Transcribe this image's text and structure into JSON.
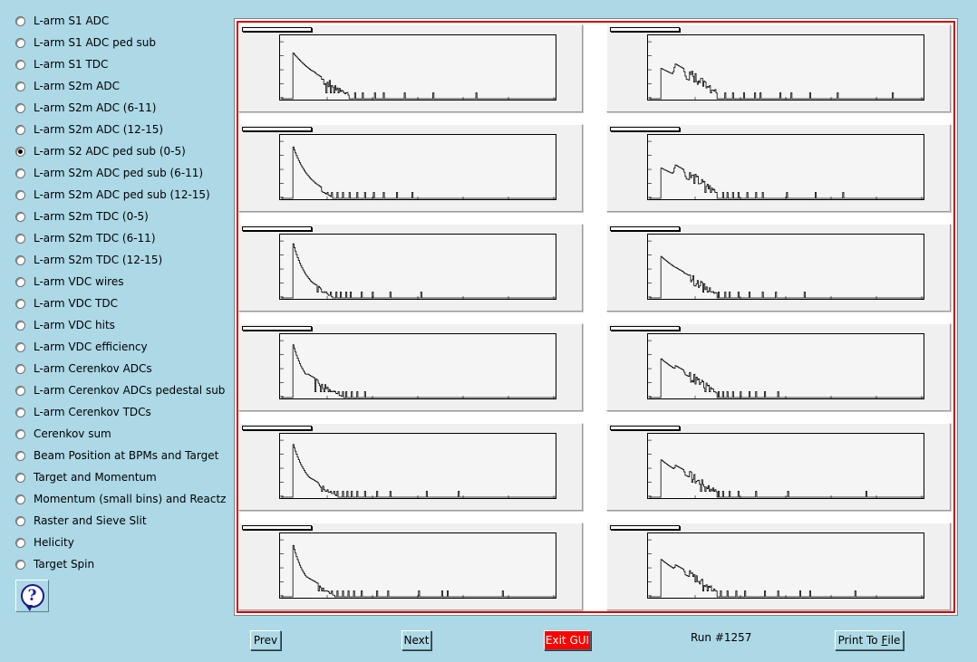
{
  "sidebar": {
    "items": [
      {
        "label": "L-arm S1 ADC",
        "checked": false
      },
      {
        "label": "L-arm S1 ADC ped sub",
        "checked": false
      },
      {
        "label": "L-arm S1 TDC",
        "checked": false
      },
      {
        "label": "L-arm S2m ADC",
        "checked": false
      },
      {
        "label": "L-arm S2m ADC (6-11)",
        "checked": false
      },
      {
        "label": "L-arm S2m ADC (12-15)",
        "checked": false
      },
      {
        "label": "L-arm S2 ADC ped sub (0-5)",
        "checked": true
      },
      {
        "label": "L-arm S2m ADC ped sub (6-11)",
        "checked": false
      },
      {
        "label": "L-arm S2m ADC ped sub (12-15)",
        "checked": false
      },
      {
        "label": "L-arm S2m TDC (0-5)",
        "checked": false
      },
      {
        "label": "L-arm S2m TDC (6-11)",
        "checked": false
      },
      {
        "label": "L-arm S2m TDC (12-15)",
        "checked": false
      },
      {
        "label": "L-arm VDC wires",
        "checked": false
      },
      {
        "label": "L-arm VDC TDC",
        "checked": false
      },
      {
        "label": "L-arm VDC hits",
        "checked": false
      },
      {
        "label": "L-arm VDC efficiency",
        "checked": false
      },
      {
        "label": "L-arm Cerenkov ADCs",
        "checked": false
      },
      {
        "label": "L-arm Cerenkov ADCs pedestal sub",
        "checked": false
      },
      {
        "label": "L-arm Cerenkov TDCs",
        "checked": false
      },
      {
        "label": "Cerenkov sum",
        "checked": false
      },
      {
        "label": "Beam Position at BPMs and Target",
        "checked": false
      },
      {
        "label": "Target and Momentum",
        "checked": false
      },
      {
        "label": "Momentum (small bins) and Reactz",
        "checked": false
      },
      {
        "label": "Raster and Sieve Slit",
        "checked": false
      },
      {
        "label": "Helicity",
        "checked": false
      },
      {
        "label": "Target Spin",
        "checked": false
      }
    ],
    "help_icon": "question-mark-icon",
    "help_symbol": "?"
  },
  "buttons": {
    "prev": "Prev",
    "next": "Next",
    "exit": "Exit GUI",
    "print_prefix": "Print To ",
    "print_accel": "F",
    "print_suffix": "ile"
  },
  "run_label": "Run #1257",
  "colors": {
    "background": "#add8e6",
    "exit_button": "#ff0000",
    "canvas_border": "#d40000"
  },
  "chart_data": {
    "type": "bar",
    "layout": "6 rows x 2 columns of log-scale histograms",
    "log_y": true,
    "pads": [
      {
        "peak": 3.2,
        "decay": 0.12,
        "bump": 2.3,
        "tail": [
          40,
          44,
          47,
          51,
          58,
          66,
          73,
          84,
          92,
          111,
          137,
          176,
          249
        ]
      },
      {
        "peak": 3.6,
        "decay": 0.25,
        "bump": 1.4,
        "tail": [
          38,
          41,
          45,
          50,
          55,
          61,
          68,
          75,
          83,
          92,
          104,
          118
        ]
      },
      {
        "peak": 3.8,
        "decay": 0.3,
        "bump": 1.4,
        "tail": [
          32,
          36,
          40,
          44,
          49,
          53,
          58,
          62,
          72,
          82,
          98,
          126
        ]
      },
      {
        "peak": 3.7,
        "decay": 0.3,
        "bump": 1.8,
        "tail": [
          30,
          35,
          38,
          42,
          44,
          46,
          48,
          51,
          55,
          58,
          63,
          68,
          75
        ]
      },
      {
        "peak": 3.7,
        "decay": 0.28,
        "bump": 1.6,
        "tail": [
          36,
          40,
          44,
          47,
          50,
          55,
          59,
          63,
          68,
          75,
          86,
          98,
          131,
          160
        ]
      },
      {
        "peak": 3.6,
        "decay": 0.33,
        "bump": 1.5,
        "tail": [
          33,
          36,
          40,
          45,
          50,
          55,
          60,
          65,
          72,
          86,
          96,
          124,
          145,
          150,
          200
        ]
      },
      {
        "peak": 2.1,
        "decay": 0.08,
        "bump": 2.6,
        "tail": [
          55,
          60,
          68,
          75,
          85,
          95,
          100,
          118,
          128,
          145,
          170,
          220
        ]
      },
      {
        "peak": 2.1,
        "decay": 0.08,
        "bump": 2.5,
        "tail": [
          50,
          55,
          60,
          66,
          70,
          75,
          80,
          88,
          96,
          102,
          124,
          150,
          175
        ]
      },
      {
        "peak": 2.9,
        "decay": 0.1,
        "bump": 2.3,
        "tail": [
          48,
          52,
          56,
          62,
          68,
          72,
          80,
          90,
          102,
          114,
          140
        ]
      },
      {
        "peak": 2.7,
        "decay": 0.1,
        "bump": 2.4,
        "tail": [
          50,
          54,
          58,
          62,
          66,
          70,
          75,
          82,
          90,
          96,
          104,
          116
        ]
      },
      {
        "peak": 2.6,
        "decay": 0.1,
        "bump": 2.4,
        "tail": [
          46,
          50,
          54,
          58,
          62,
          66,
          72,
          80,
          96,
          125,
          196
        ]
      },
      {
        "peak": 2.6,
        "decay": 0.1,
        "bump": 2.4,
        "tail": [
          48,
          52,
          56,
          60,
          64,
          70,
          78,
          86,
          104,
          116,
          136,
          145,
          186
        ]
      }
    ]
  }
}
